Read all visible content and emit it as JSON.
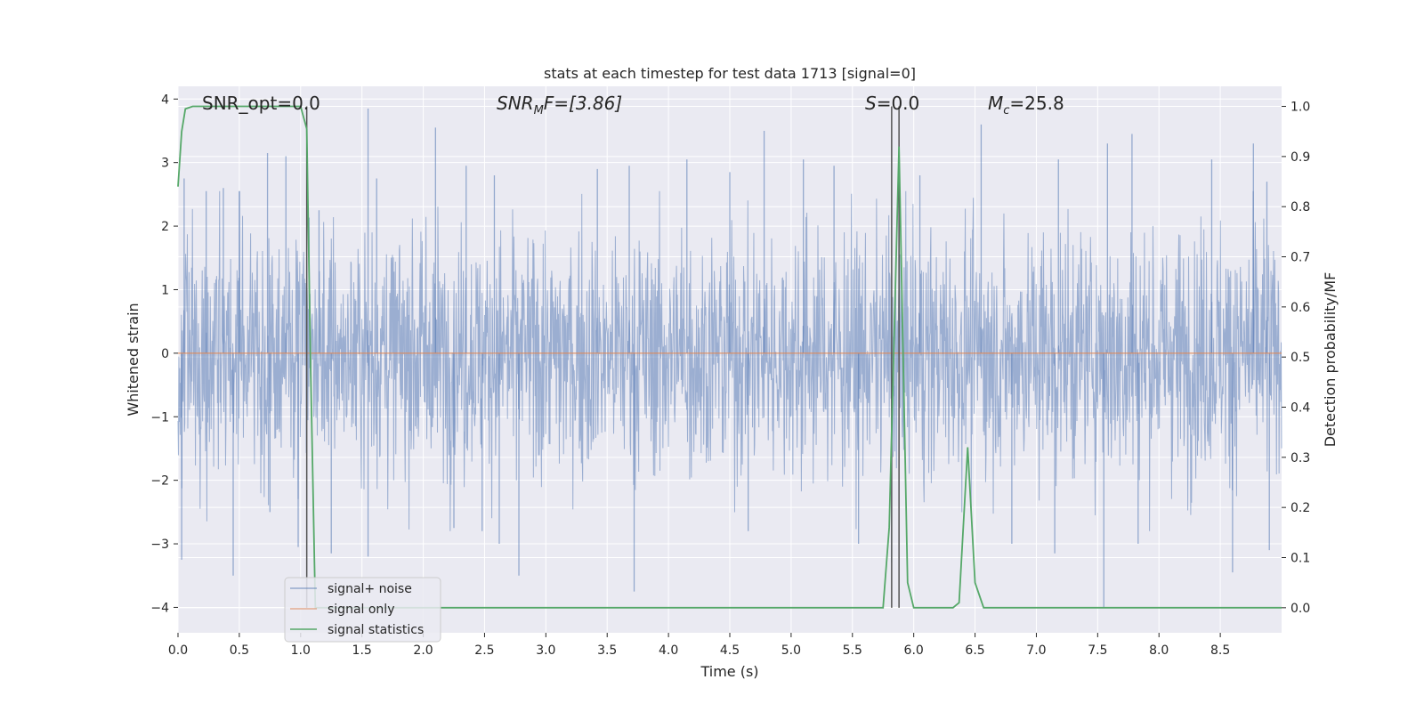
{
  "chart_data": {
    "type": "line",
    "title": "stats at each timestep for test data 1713 [signal=0]",
    "xlabel": "Time (s)",
    "ylabel": "Whitened strain",
    "ylabel_right": "Detection probability/MF",
    "xlim": [
      0.0,
      9.0
    ],
    "ylim": [
      -4.4,
      4.2
    ],
    "ylim_right": [
      -0.05,
      1.04
    ],
    "x_ticks": [
      "0.0",
      "0.5",
      "1.0",
      "1.5",
      "2.0",
      "2.5",
      "3.0",
      "3.5",
      "4.0",
      "4.5",
      "5.0",
      "5.5",
      "6.0",
      "6.5",
      "7.0",
      "7.5",
      "8.0",
      "8.5"
    ],
    "y_ticks": [
      "−4",
      "−3",
      "−2",
      "−1",
      "0",
      "1",
      "2",
      "3",
      "4"
    ],
    "y_right_ticks": [
      "0.0",
      "0.1",
      "0.2",
      "0.3",
      "0.4",
      "0.5",
      "0.6",
      "0.7",
      "0.8",
      "0.9",
      "1.0"
    ],
    "grid": true,
    "annotations": {
      "snr_opt": "SNR_opt=0.0",
      "snr_mf_prefix": "SNR",
      "snr_mf_sub": "M",
      "snr_mf_suffix": "F=[3.86]",
      "s_label": "S",
      "s_value": "=0.0",
      "mc_label": "M",
      "mc_sub": "c",
      "mc_value": "=25.8"
    },
    "series": [
      {
        "name": "signal+ noise",
        "axis": "left",
        "color": "#4c72b0",
        "description_of_shape": "dense gaussian noise with spikes",
        "spikes_high": [
          [
            0.05,
            2.75
          ],
          [
            0.23,
            2.55
          ],
          [
            0.37,
            2.6
          ],
          [
            0.5,
            2.55
          ],
          [
            0.73,
            3.15
          ],
          [
            0.88,
            3.1
          ],
          [
            1.15,
            2.25
          ],
          [
            1.55,
            3.85
          ],
          [
            1.62,
            2.75
          ],
          [
            2.1,
            3.55
          ],
          [
            2.35,
            2.95
          ],
          [
            2.58,
            2.8
          ],
          [
            3.42,
            2.9
          ],
          [
            3.68,
            2.95
          ],
          [
            4.15,
            3.05
          ],
          [
            4.5,
            2.85
          ],
          [
            4.78,
            3.5
          ],
          [
            5.1,
            3.05
          ],
          [
            5.35,
            2.95
          ],
          [
            6.05,
            2.8
          ],
          [
            6.55,
            3.6
          ],
          [
            7.18,
            3.05
          ],
          [
            7.58,
            3.3
          ],
          [
            7.78,
            3.45
          ],
          [
            8.43,
            3.05
          ],
          [
            8.77,
            3.3
          ],
          [
            8.88,
            2.7
          ]
        ],
        "spikes_low": [
          [
            0.03,
            -3.25
          ],
          [
            0.45,
            -3.5
          ],
          [
            0.75,
            -2.5
          ],
          [
            0.98,
            -3.05
          ],
          [
            1.25,
            -3.15
          ],
          [
            1.55,
            -3.2
          ],
          [
            2.25,
            -2.75
          ],
          [
            2.48,
            -2.8
          ],
          [
            2.62,
            -3.0
          ],
          [
            2.78,
            -3.5
          ],
          [
            3.72,
            -3.75
          ],
          [
            4.65,
            -2.8
          ],
          [
            5.55,
            -3.0
          ],
          [
            5.82,
            -3.3
          ],
          [
            6.8,
            -3.0
          ],
          [
            7.15,
            -3.15
          ],
          [
            7.55,
            -4.0
          ],
          [
            7.83,
            -3.0
          ],
          [
            8.6,
            -3.45
          ],
          [
            8.9,
            -3.1
          ]
        ]
      },
      {
        "name": "signal only",
        "axis": "left",
        "color": "#dd8452",
        "x": [
          0.0,
          9.0
        ],
        "y": [
          0.0,
          0.0
        ]
      },
      {
        "name": "signal statistics",
        "axis": "right",
        "color": "#55a868",
        "x": [
          0.0,
          0.03,
          0.06,
          0.12,
          1.0,
          1.05,
          1.08,
          1.12,
          5.75,
          5.8,
          5.88,
          5.95,
          6.0,
          6.32,
          6.37,
          6.44,
          6.5,
          6.57,
          9.0
        ],
        "y": [
          0.84,
          0.95,
          0.995,
          1.0,
          1.0,
          0.955,
          0.5,
          0.0,
          0.0,
          0.16,
          0.92,
          0.05,
          0.0,
          0.0,
          0.01,
          0.32,
          0.05,
          0.0,
          0.0
        ]
      }
    ],
    "vertical_lines": [
      1.05,
      5.82,
      5.88
    ],
    "legend": {
      "placement": "lower-left",
      "entries": [
        "signal+ noise",
        "signal only",
        "signal statistics"
      ]
    },
    "colors": {
      "background": "#eaeaf2",
      "grid": "#ffffff",
      "vline": "#555555"
    }
  }
}
